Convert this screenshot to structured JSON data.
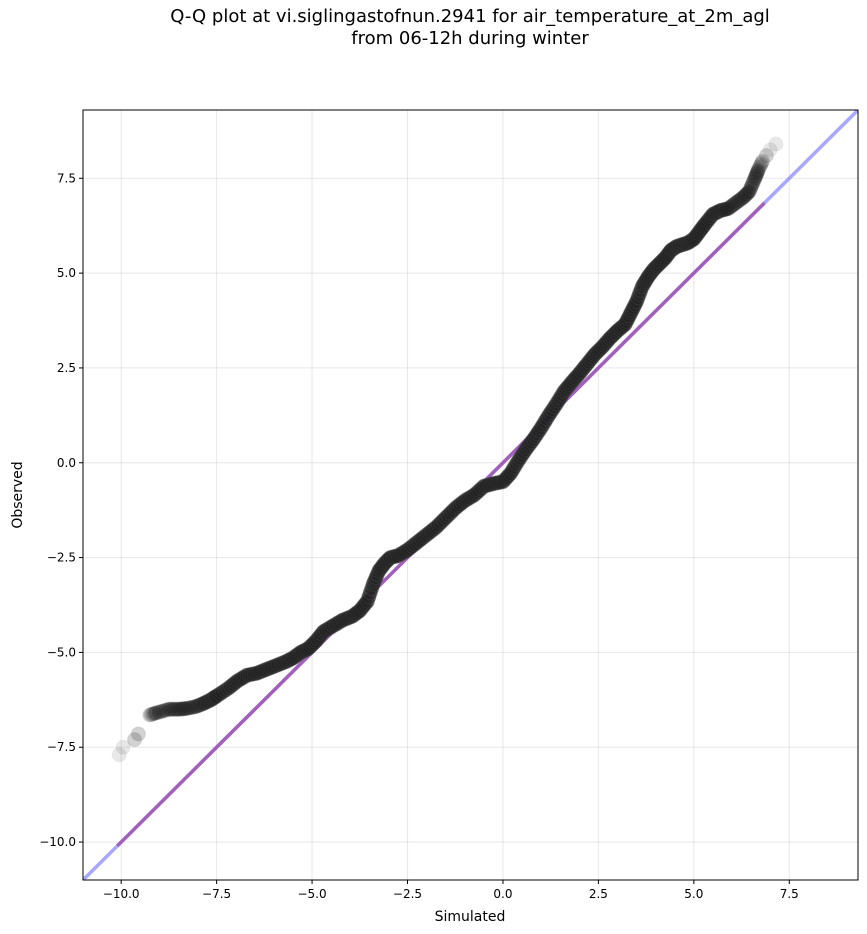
{
  "title": {
    "line1": "Q-Q plot at vi.siglingastofnun.2941 for air_temperature_at_2m_agl",
    "line2": "from 06-12h during winter"
  },
  "chart_data": {
    "type": "scatter",
    "title": "Q-Q plot at vi.siglingastofnun.2941 for air_temperature_at_2m_agl from 06-12h during winter",
    "xlabel": "Simulated",
    "ylabel": "Observed",
    "xlim": [
      -11.0,
      9.3
    ],
    "ylim": [
      -11.0,
      9.3
    ],
    "grid": true,
    "xticks": [
      -10.0,
      -7.5,
      -5.0,
      -2.5,
      0.0,
      2.5,
      5.0,
      7.5
    ],
    "yticks": [
      -10.0,
      -7.5,
      -5.0,
      -2.5,
      0.0,
      2.5,
      5.0,
      7.5
    ],
    "xtick_labels": [
      "−10.0",
      "−7.5",
      "−5.0",
      "−2.5",
      "0.0",
      "2.5",
      "5.0",
      "7.5"
    ],
    "ytick_labels": [
      "−10.0",
      "−7.5",
      "−5.0",
      "−2.5",
      "0.0",
      "2.5",
      "5.0",
      "7.5"
    ],
    "reference_line": {
      "x": [
        -11.0,
        9.3
      ],
      "y": [
        -11.0,
        9.3
      ],
      "color": "#8a8aff"
    },
    "fit_line": {
      "x": [
        -10.1,
        6.85
      ],
      "y": [
        -10.1,
        6.85
      ],
      "color": "#a040a0"
    },
    "quantiles": {
      "x": [
        -10.05,
        -9.95,
        -9.65,
        -9.55,
        -9.25,
        -9.1,
        -8.75,
        -8.5,
        -8.3,
        -8.05,
        -7.85,
        -7.65,
        -7.5,
        -7.2,
        -6.95,
        -6.7,
        -6.45,
        -6.2,
        -5.95,
        -5.7,
        -5.5,
        -5.3,
        -5.1,
        -4.9,
        -4.7,
        -4.45,
        -4.2,
        -3.95,
        -3.75,
        -3.55,
        -3.4,
        -3.25,
        -3.1,
        -2.95,
        -2.75,
        -2.5,
        -2.25,
        -2.0,
        -1.75,
        -1.5,
        -1.25,
        -1.0,
        -0.75,
        -0.5,
        -0.25,
        0.0,
        0.2,
        0.4,
        0.6,
        0.8,
        1.0,
        1.2,
        1.4,
        1.6,
        1.8,
        2.0,
        2.2,
        2.4,
        2.6,
        2.8,
        3.0,
        3.2,
        3.35,
        3.5,
        3.65,
        3.8,
        3.95,
        4.1,
        4.25,
        4.4,
        4.55,
        4.7,
        4.85,
        5.0,
        5.15,
        5.3,
        5.5,
        5.7,
        5.9,
        6.1,
        6.3,
        6.45,
        6.6,
        6.7,
        6.8,
        6.9,
        7.0,
        7.15
      ],
      "y": [
        -7.7,
        -7.5,
        -7.3,
        -7.15,
        -6.65,
        -6.6,
        -6.5,
        -6.5,
        -6.48,
        -6.43,
        -6.35,
        -6.25,
        -6.15,
        -5.95,
        -5.75,
        -5.6,
        -5.55,
        -5.45,
        -5.35,
        -5.25,
        -5.15,
        -5.0,
        -4.9,
        -4.7,
        -4.45,
        -4.3,
        -4.15,
        -4.05,
        -3.9,
        -3.65,
        -3.2,
        -2.85,
        -2.65,
        -2.5,
        -2.45,
        -2.3,
        -2.1,
        -1.9,
        -1.7,
        -1.45,
        -1.2,
        -1.0,
        -0.85,
        -0.62,
        -0.55,
        -0.5,
        -0.28,
        0.05,
        0.35,
        0.62,
        0.92,
        1.25,
        1.55,
        1.88,
        2.12,
        2.35,
        2.6,
        2.85,
        3.05,
        3.28,
        3.48,
        3.65,
        3.95,
        4.25,
        4.65,
        4.9,
        5.1,
        5.25,
        5.4,
        5.6,
        5.7,
        5.75,
        5.8,
        5.9,
        6.1,
        6.3,
        6.55,
        6.65,
        6.7,
        6.85,
        7.0,
        7.15,
        7.5,
        7.75,
        7.95,
        8.1,
        8.25,
        8.4
      ]
    }
  }
}
